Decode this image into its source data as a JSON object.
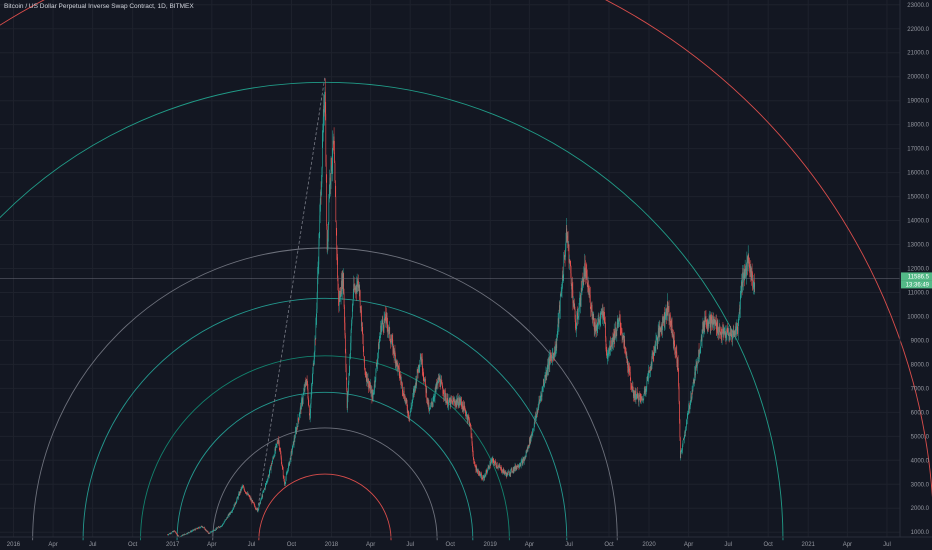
{
  "chart_data": {
    "type": "candlestick",
    "title": "Bitcoin / US Dollar Perpetual Inverse Swap Contract, 1D, BITMEX",
    "x_tick_labels": [
      "2016",
      "Apr",
      "Jul",
      "Oct",
      "2017",
      "Apr",
      "Jul",
      "Oct",
      "2018",
      "Apr",
      "Jul",
      "Oct",
      "2019",
      "Apr",
      "Jul",
      "Oct",
      "2020",
      "Apr",
      "Jul",
      "Oct",
      "2021",
      "Apr",
      "Jul"
    ],
    "x_tick_dates": [
      "2016-01-01",
      "2016-04-01",
      "2016-07-01",
      "2016-10-01",
      "2017-01-01",
      "2017-04-01",
      "2017-07-01",
      "2017-10-01",
      "2018-01-01",
      "2018-04-01",
      "2018-07-01",
      "2018-10-01",
      "2019-01-01",
      "2019-04-01",
      "2019-07-01",
      "2019-10-01",
      "2020-01-01",
      "2020-04-01",
      "2020-07-01",
      "2020-10-01",
      "2021-01-01",
      "2021-04-01",
      "2021-07-01"
    ],
    "y_tick_labels": [
      "1000.0",
      "2000.0",
      "3000.0",
      "4000.0",
      "5000.0",
      "6000.0",
      "7000.0",
      "8000.0",
      "9000.0",
      "10000.0",
      "11000.0",
      "12000.0",
      "13000.0",
      "14000.0",
      "15000.0",
      "16000.0",
      "17000.0",
      "18000.0",
      "19000.0",
      "20000.0",
      "21000.0",
      "22000.0",
      "23000.0"
    ],
    "y_tick_values": [
      1000,
      2000,
      3000,
      4000,
      5000,
      6000,
      7000,
      8000,
      9000,
      10000,
      11000,
      12000,
      13000,
      14000,
      15000,
      16000,
      17000,
      18000,
      19000,
      20000,
      21000,
      22000,
      23000
    ],
    "ylim": [
      800,
      23200
    ],
    "xlim": [
      "2015-12-01",
      "2021-07-31"
    ],
    "last_price": "11586.5",
    "countdown": "13:36:49",
    "last_price_value": 11586.5,
    "colors": {
      "background": "#131722",
      "up": "#26a69a",
      "down": "#ef5350",
      "axis_text": "#9598a1",
      "price_label": "#53b987",
      "price_line": "#787b86",
      "trend_line": "#787b86"
    },
    "price_path": [
      [
        "2016-12-20",
        900
      ],
      [
        "2017-01-05",
        1050
      ],
      [
        "2017-01-15",
        800
      ],
      [
        "2017-02-20",
        1100
      ],
      [
        "2017-03-10",
        1250
      ],
      [
        "2017-03-25",
        950
      ],
      [
        "2017-04-25",
        1300
      ],
      [
        "2017-05-20",
        2000
      ],
      [
        "2017-06-10",
        2900
      ],
      [
        "2017-06-25",
        2500
      ],
      [
        "2017-07-15",
        1900
      ],
      [
        "2017-08-10",
        3400
      ],
      [
        "2017-08-20",
        4100
      ],
      [
        "2017-09-01",
        4900
      ],
      [
        "2017-09-15",
        3000
      ],
      [
        "2017-10-01",
        4300
      ],
      [
        "2017-10-20",
        6000
      ],
      [
        "2017-11-05",
        7400
      ],
      [
        "2017-11-12",
        5800
      ],
      [
        "2017-11-26",
        9500
      ],
      [
        "2017-12-07",
        15000
      ],
      [
        "2017-12-17",
        19800
      ],
      [
        "2017-12-22",
        12500
      ],
      [
        "2017-12-27",
        15500
      ],
      [
        "2018-01-06",
        17200
      ],
      [
        "2018-01-17",
        10500
      ],
      [
        "2018-01-28",
        11700
      ],
      [
        "2018-02-06",
        6200
      ],
      [
        "2018-02-20",
        11000
      ],
      [
        "2018-03-05",
        11500
      ],
      [
        "2018-03-18",
        7800
      ],
      [
        "2018-04-06",
        6600
      ],
      [
        "2018-04-25",
        9600
      ],
      [
        "2018-05-06",
        9900
      ],
      [
        "2018-06-06",
        7600
      ],
      [
        "2018-06-29",
        5800
      ],
      [
        "2018-07-25",
        8400
      ],
      [
        "2018-08-14",
        6000
      ],
      [
        "2018-09-05",
        7400
      ],
      [
        "2018-09-25",
        6400
      ],
      [
        "2018-10-25",
        6450
      ],
      [
        "2018-11-15",
        5600
      ],
      [
        "2018-11-25",
        3800
      ],
      [
        "2018-12-15",
        3200
      ],
      [
        "2019-01-05",
        4000
      ],
      [
        "2019-02-08",
        3400
      ],
      [
        "2019-03-20",
        4000
      ],
      [
        "2019-04-08",
        5200
      ],
      [
        "2019-05-14",
        8000
      ],
      [
        "2019-06-01",
        8700
      ],
      [
        "2019-06-26",
        13500
      ],
      [
        "2019-07-17",
        9500
      ],
      [
        "2019-08-06",
        12000
      ],
      [
        "2019-08-30",
        9500
      ],
      [
        "2019-09-20",
        10200
      ],
      [
        "2019-09-25",
        8400
      ],
      [
        "2019-10-26",
        9800
      ],
      [
        "2019-11-25",
        6800
      ],
      [
        "2019-12-17",
        6500
      ],
      [
        "2020-01-18",
        9000
      ],
      [
        "2020-02-13",
        10400
      ],
      [
        "2020-03-08",
        7900
      ],
      [
        "2020-03-13",
        4100
      ],
      [
        "2020-04-10",
        7000
      ],
      [
        "2020-05-08",
        9900
      ],
      [
        "2020-06-01",
        9700
      ],
      [
        "2020-06-15",
        9300
      ],
      [
        "2020-07-10",
        9200
      ],
      [
        "2020-07-24",
        9600
      ],
      [
        "2020-08-01",
        11500
      ],
      [
        "2020-08-17",
        12300
      ],
      [
        "2020-08-27",
        11400
      ],
      [
        "2020-08-31",
        11586.5
      ]
    ],
    "annotations": {
      "trend_line": [
        [
          "2017-07-15",
          1900
        ],
        [
          "2017-12-17",
          20000
        ]
      ],
      "arcs": [
        {
          "color": "#787b86",
          "radius_days": 672
        },
        {
          "color": "#26a69a",
          "radius_days": 556
        },
        {
          "color": "#138d75",
          "radius_days": 424
        },
        {
          "color": "#26a69a",
          "radius_days": 340
        },
        {
          "color": "#787b86",
          "radius_days": 258
        },
        {
          "color": "#ef5350",
          "radius_days": 152
        },
        {
          "color": "#22ab94",
          "radius_days": 1053
        },
        {
          "color": "#ef5350",
          "radius_days": 1400
        }
      ],
      "arc_center": [
        "2017-12-17",
        1000
      ]
    }
  }
}
